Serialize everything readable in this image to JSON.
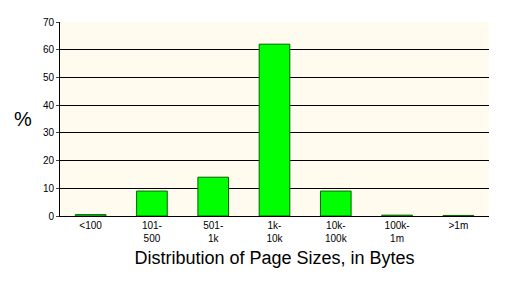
{
  "chart_data": {
    "type": "bar",
    "x_label": "Distribution of Page Sizes, in Bytes",
    "y_label": "%",
    "categories": [
      "<100",
      "101-500",
      "501-1k",
      "1k-10k",
      "10k-100k",
      "100k-1m",
      ">1m"
    ],
    "values": [
      0.5,
      9,
      14,
      62,
      9,
      0.3,
      0.2
    ],
    "color": "#00ff00",
    "ylim": [
      0,
      70
    ],
    "yticks": [
      0,
      10,
      20,
      30,
      40,
      50,
      60,
      70
    ],
    "grid": true
  }
}
